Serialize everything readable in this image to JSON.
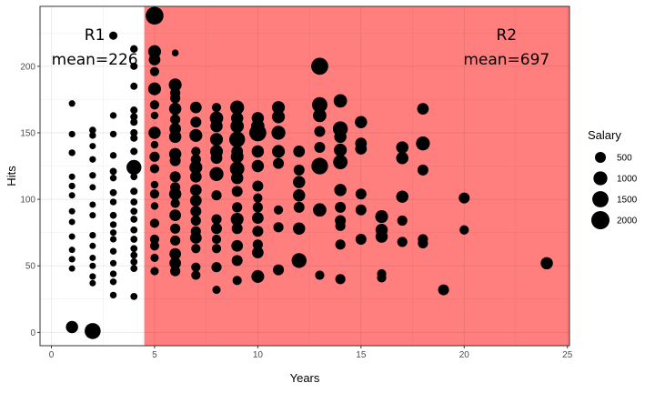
{
  "chart_data": {
    "type": "scatter",
    "title": "",
    "xlabel": "Years",
    "ylabel": "Hits",
    "xlim": [
      0,
      25
    ],
    "ylim": [
      0,
      238
    ],
    "xticks": [
      0,
      5,
      10,
      15,
      20,
      25
    ],
    "yticks": [
      0,
      50,
      100,
      150,
      200
    ],
    "grid": true,
    "regions": [
      {
        "name": "R1",
        "mean_label": "mean=226",
        "x_range": [
          0,
          4.5
        ],
        "color": "#ffffff"
      },
      {
        "name": "R2",
        "mean_label": "mean=697",
        "x_range": [
          4.5,
          25
        ],
        "color": "#ff7f7f"
      }
    ],
    "size_legend": {
      "title": "Salary",
      "placement": "right",
      "entries": [
        500,
        1000,
        1500,
        2000
      ]
    },
    "points": [
      [
        1,
        172,
        80
      ],
      [
        1,
        149,
        80
      ],
      [
        1,
        135,
        90
      ],
      [
        1,
        117,
        70
      ],
      [
        1,
        110,
        80
      ],
      [
        1,
        103,
        70
      ],
      [
        1,
        91,
        70
      ],
      [
        1,
        83,
        70
      ],
      [
        1,
        72,
        70
      ],
      [
        1,
        62,
        70
      ],
      [
        1,
        55,
        80
      ],
      [
        1,
        48,
        70
      ],
      [
        1,
        4,
        700
      ],
      [
        2,
        152,
        100
      ],
      [
        2,
        148,
        90
      ],
      [
        2,
        140,
        70
      ],
      [
        2,
        130,
        80
      ],
      [
        2,
        118,
        90
      ],
      [
        2,
        109,
        70
      ],
      [
        2,
        96,
        70
      ],
      [
        2,
        88,
        70
      ],
      [
        2,
        73,
        80
      ],
      [
        2,
        65,
        70
      ],
      [
        2,
        56,
        70
      ],
      [
        2,
        50,
        70
      ],
      [
        2,
        42,
        80
      ],
      [
        2,
        37,
        70
      ],
      [
        2,
        1,
        1450
      ],
      [
        3,
        223,
        200
      ],
      [
        3,
        163,
        90
      ],
      [
        3,
        149,
        90
      ],
      [
        3,
        133,
        90
      ],
      [
        3,
        121,
        110
      ],
      [
        3,
        116,
        90
      ],
      [
        3,
        105,
        110
      ],
      [
        3,
        98,
        90
      ],
      [
        3,
        88,
        100
      ],
      [
        3,
        81,
        90
      ],
      [
        3,
        75,
        80
      ],
      [
        3,
        70,
        80
      ],
      [
        3,
        61,
        90
      ],
      [
        3,
        52,
        80
      ],
      [
        3,
        44,
        90
      ],
      [
        3,
        38,
        90
      ],
      [
        3,
        28,
        90
      ],
      [
        4,
        213,
        150
      ],
      [
        4,
        200,
        130
      ],
      [
        4,
        185,
        120
      ],
      [
        4,
        167,
        130
      ],
      [
        4,
        162,
        130
      ],
      [
        4,
        158,
        130
      ],
      [
        4,
        150,
        130
      ],
      [
        4,
        146,
        130
      ],
      [
        4,
        136,
        130
      ],
      [
        4,
        124,
        1200
      ],
      [
        4,
        117,
        110
      ],
      [
        4,
        106,
        130
      ],
      [
        4,
        98,
        110
      ],
      [
        4,
        91,
        110
      ],
      [
        4,
        85,
        110
      ],
      [
        4,
        77,
        110
      ],
      [
        4,
        70,
        110
      ],
      [
        4,
        63,
        110
      ],
      [
        4,
        58,
        110
      ],
      [
        4,
        53,
        110
      ],
      [
        4,
        48,
        110
      ],
      [
        4,
        27,
        110
      ],
      [
        5,
        238,
        1900
      ],
      [
        5,
        211,
        800
      ],
      [
        5,
        205,
        600
      ],
      [
        5,
        196,
        300
      ],
      [
        5,
        183,
        800
      ],
      [
        5,
        171,
        300
      ],
      [
        5,
        163,
        150
      ],
      [
        5,
        150,
        700
      ],
      [
        5,
        141,
        150
      ],
      [
        5,
        132,
        400
      ],
      [
        5,
        123,
        300
      ],
      [
        5,
        111,
        150
      ],
      [
        5,
        104,
        300
      ],
      [
        5,
        95,
        150
      ],
      [
        5,
        82,
        300
      ],
      [
        5,
        70,
        300
      ],
      [
        5,
        65,
        300
      ],
      [
        5,
        56,
        200
      ],
      [
        5,
        46,
        200
      ],
      [
        6,
        210,
        100
      ],
      [
        6,
        186,
        800
      ],
      [
        6,
        180,
        400
      ],
      [
        6,
        176,
        400
      ],
      [
        6,
        168,
        700
      ],
      [
        6,
        160,
        400
      ],
      [
        6,
        153,
        600
      ],
      [
        6,
        147,
        700
      ],
      [
        6,
        134,
        700
      ],
      [
        6,
        129,
        500
      ],
      [
        6,
        117,
        500
      ],
      [
        6,
        109,
        400
      ],
      [
        6,
        104,
        700
      ],
      [
        6,
        97,
        300
      ],
      [
        6,
        88,
        600
      ],
      [
        6,
        78,
        400
      ],
      [
        6,
        69,
        400
      ],
      [
        6,
        59,
        600
      ],
      [
        6,
        52,
        600
      ],
      [
        6,
        46,
        400
      ],
      [
        7,
        169,
        600
      ],
      [
        7,
        158,
        500
      ],
      [
        7,
        148,
        800
      ],
      [
        7,
        136,
        300
      ],
      [
        7,
        130,
        400
      ],
      [
        7,
        124,
        800
      ],
      [
        7,
        117,
        600
      ],
      [
        7,
        107,
        600
      ],
      [
        7,
        99,
        600
      ],
      [
        7,
        91,
        500
      ],
      [
        7,
        84,
        400
      ],
      [
        7,
        76,
        400
      ],
      [
        7,
        71,
        600
      ],
      [
        7,
        63,
        300
      ],
      [
        7,
        49,
        300
      ],
      [
        7,
        43,
        300
      ],
      [
        8,
        169,
        300
      ],
      [
        8,
        161,
        900
      ],
      [
        8,
        155,
        700
      ],
      [
        8,
        145,
        800
      ],
      [
        8,
        136,
        800
      ],
      [
        8,
        131,
        600
      ],
      [
        8,
        119,
        1000
      ],
      [
        8,
        103,
        400
      ],
      [
        8,
        85,
        400
      ],
      [
        8,
        78,
        500
      ],
      [
        8,
        70,
        300
      ],
      [
        8,
        63,
        300
      ],
      [
        8,
        49,
        400
      ],
      [
        8,
        32,
        200
      ],
      [
        9,
        169,
        1000
      ],
      [
        9,
        161,
        700
      ],
      [
        9,
        155,
        900
      ],
      [
        9,
        145,
        1400
      ],
      [
        9,
        136,
        600
      ],
      [
        9,
        132,
        800
      ],
      [
        9,
        123,
        1100
      ],
      [
        9,
        116,
        700
      ],
      [
        9,
        106,
        500
      ],
      [
        9,
        94,
        400
      ],
      [
        9,
        85,
        800
      ],
      [
        9,
        78,
        500
      ],
      [
        9,
        65,
        600
      ],
      [
        9,
        54,
        500
      ],
      [
        9,
        39,
        300
      ],
      [
        10,
        161,
        700
      ],
      [
        10,
        155,
        900
      ],
      [
        10,
        150,
        1700
      ],
      [
        10,
        136,
        700
      ],
      [
        10,
        125,
        700
      ],
      [
        10,
        110,
        500
      ],
      [
        10,
        101,
        300
      ],
      [
        10,
        94,
        400
      ],
      [
        10,
        86,
        600
      ],
      [
        10,
        76,
        500
      ],
      [
        10,
        66,
        400
      ],
      [
        10,
        60,
        600
      ],
      [
        10,
        42,
        800
      ],
      [
        11,
        169,
        800
      ],
      [
        11,
        162,
        800
      ],
      [
        11,
        150,
        1000
      ],
      [
        11,
        136,
        800
      ],
      [
        11,
        127,
        500
      ],
      [
        11,
        92,
        300
      ],
      [
        11,
        79,
        400
      ],
      [
        11,
        47,
        500
      ],
      [
        12,
        136,
        600
      ],
      [
        12,
        122,
        500
      ],
      [
        12,
        113,
        700
      ],
      [
        12,
        103,
        700
      ],
      [
        12,
        94,
        500
      ],
      [
        12,
        78,
        700
      ],
      [
        12,
        54,
        1200
      ],
      [
        13,
        200,
        1700
      ],
      [
        13,
        171,
        1300
      ],
      [
        13,
        163,
        900
      ],
      [
        13,
        151,
        500
      ],
      [
        13,
        139,
        500
      ],
      [
        13,
        125,
        1600
      ],
      [
        13,
        92,
        900
      ],
      [
        13,
        43,
        300
      ],
      [
        14,
        174,
        900
      ],
      [
        14,
        153,
        1200
      ],
      [
        14,
        147,
        700
      ],
      [
        14,
        137,
        800
      ],
      [
        14,
        128,
        1100
      ],
      [
        14,
        107,
        700
      ],
      [
        14,
        94,
        500
      ],
      [
        14,
        84,
        500
      ],
      [
        14,
        80,
        400
      ],
      [
        14,
        66,
        400
      ],
      [
        14,
        40,
        400
      ],
      [
        15,
        158,
        700
      ],
      [
        15,
        142,
        600
      ],
      [
        15,
        138,
        600
      ],
      [
        15,
        104,
        500
      ],
      [
        15,
        92,
        500
      ],
      [
        15,
        70,
        500
      ],
      [
        16,
        87,
        800
      ],
      [
        16,
        77,
        700
      ],
      [
        16,
        72,
        700
      ],
      [
        16,
        44,
        300
      ],
      [
        16,
        41,
        300
      ],
      [
        17,
        139,
        700
      ],
      [
        17,
        131,
        700
      ],
      [
        17,
        102,
        700
      ],
      [
        17,
        84,
        400
      ],
      [
        17,
        68,
        400
      ],
      [
        18,
        168,
        600
      ],
      [
        18,
        142,
        1000
      ],
      [
        18,
        122,
        500
      ],
      [
        18,
        70,
        400
      ],
      [
        18,
        67,
        400
      ],
      [
        19,
        32,
        500
      ],
      [
        20,
        101,
        500
      ],
      [
        20,
        77,
        300
      ],
      [
        24,
        52,
        700
      ]
    ]
  }
}
